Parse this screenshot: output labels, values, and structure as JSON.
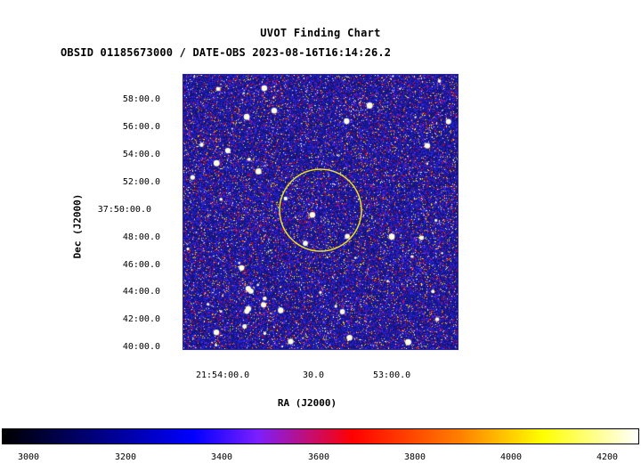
{
  "title": "UVOT Finding Chart",
  "subtitle": "OBSID 01185673000 / DATE-OBS 2023-08-16T16:14:26.2",
  "axes": {
    "xlabel": "RA (J2000)",
    "ylabel": "Dec (J2000)",
    "xticks": [
      "21:54:00.0",
      "30.0",
      "53:00.0"
    ],
    "yticks": [
      "58:00.0",
      "56:00.0",
      "54:00.0",
      "52:00.0",
      "37:50:00.0",
      "48:00.0",
      "46:00.0",
      "44:00.0",
      "42:00.0",
      "40:00.0"
    ]
  },
  "colorbar": {
    "ticks": [
      "3000",
      "3200",
      "3400",
      "3600",
      "3800",
      "4000",
      "4200"
    ]
  },
  "colors": {
    "circle": "#e8e020",
    "background": "#14149a"
  }
}
